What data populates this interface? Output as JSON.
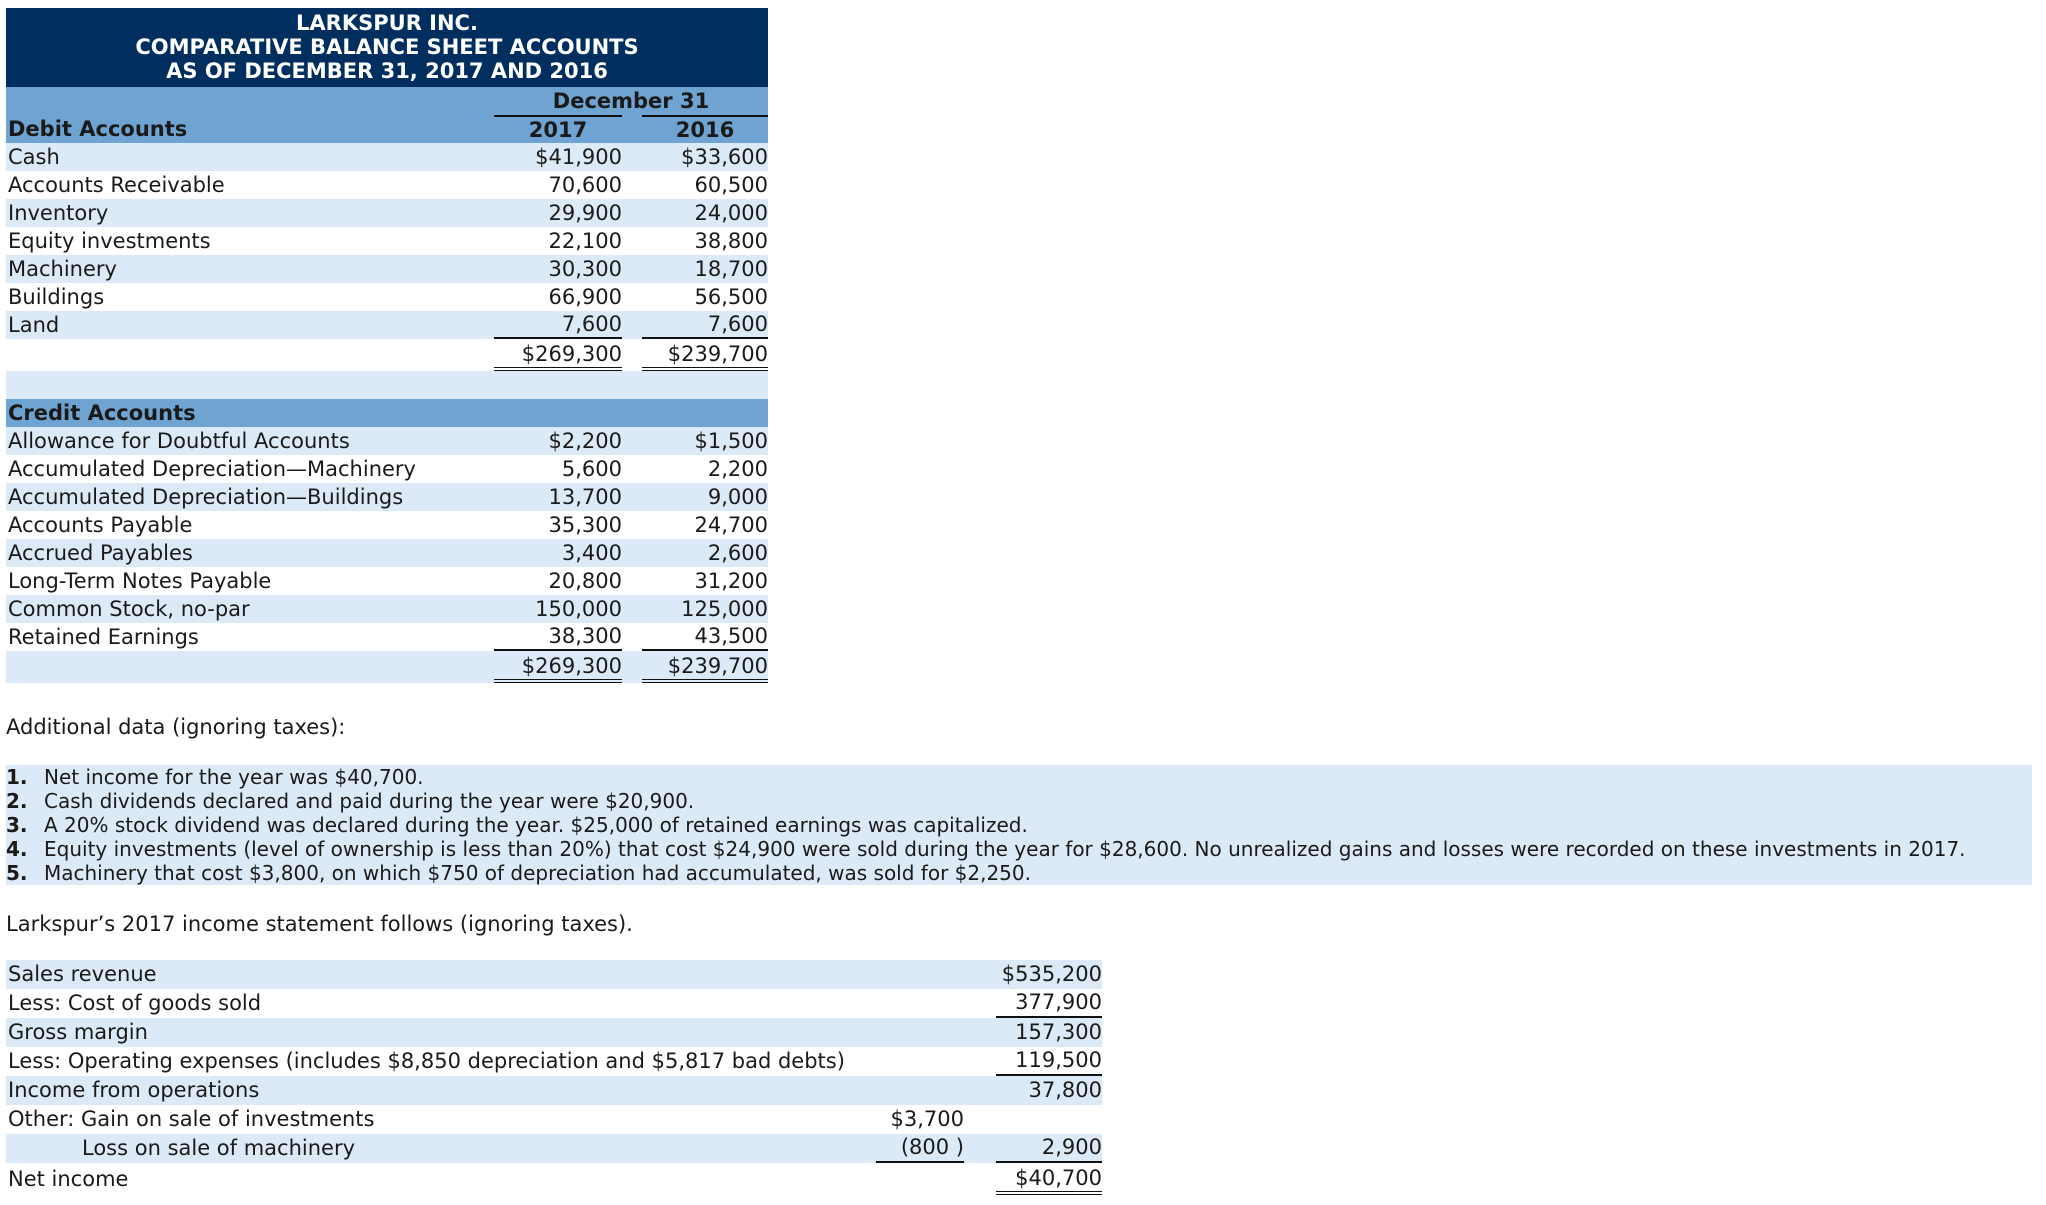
{
  "header": {
    "company": "LARKSPUR INC.",
    "statement": "COMPARATIVE BALANCE SHEET ACCOUNTS",
    "date_line": "AS OF DECEMBER 31, 2017 AND 2016"
  },
  "columns": {
    "group_label": "December 31",
    "year1": "2017",
    "year2": "2016"
  },
  "debit": {
    "heading": "Debit Accounts",
    "rows": [
      {
        "label": "Cash",
        "y2017": "$41,900",
        "y2016": "$33,600"
      },
      {
        "label": "Accounts Receivable",
        "y2017": "70,600",
        "y2016": "60,500"
      },
      {
        "label": "Inventory",
        "y2017": "29,900",
        "y2016": "24,000"
      },
      {
        "label": "Equity investments",
        "y2017": "22,100",
        "y2016": "38,800"
      },
      {
        "label": "Machinery",
        "y2017": "30,300",
        "y2016": "18,700"
      },
      {
        "label": "Buildings",
        "y2017": "66,900",
        "y2016": "56,500"
      },
      {
        "label": "Land",
        "y2017": "7,600",
        "y2016": "7,600"
      }
    ],
    "total": {
      "y2017": "$269,300",
      "y2016": "$239,700"
    }
  },
  "credit": {
    "heading": "Credit Accounts",
    "rows": [
      {
        "label": "Allowance for Doubtful Accounts",
        "y2017": "$2,200",
        "y2016": "$1,500"
      },
      {
        "label": "Accumulated Depreciation—Machinery",
        "y2017": "5,600",
        "y2016": "2,200"
      },
      {
        "label": "Accumulated Depreciation—Buildings",
        "y2017": "13,700",
        "y2016": "9,000"
      },
      {
        "label": "Accounts Payable",
        "y2017": "35,300",
        "y2016": "24,700"
      },
      {
        "label": "Accrued Payables",
        "y2017": "3,400",
        "y2016": "2,600"
      },
      {
        "label": "Long-Term Notes Payable",
        "y2017": "20,800",
        "y2016": "31,200"
      },
      {
        "label": "Common Stock, no-par",
        "y2017": "150,000",
        "y2016": "125,000"
      },
      {
        "label": "Retained Earnings",
        "y2017": "38,300",
        "y2016": "43,500"
      }
    ],
    "total": {
      "y2017": "$269,300",
      "y2016": "$239,700"
    }
  },
  "additional_heading": "Additional data (ignoring taxes):",
  "notes": [
    {
      "num": "1.",
      "text": "Net income for the year was $40,700."
    },
    {
      "num": "2.",
      "text": "Cash dividends declared and paid during the year were $20,900."
    },
    {
      "num": "3.",
      "text": "A 20% stock dividend was declared during the year. $25,000 of retained earnings was capitalized."
    },
    {
      "num": "4.",
      "text": "Equity investments (level of ownership is less than 20%) that cost $24,900 were sold during the year for $28,600. No unrealized gains and losses were recorded on these investments in 2017."
    },
    {
      "num": "5.",
      "text": "Machinery that cost $3,800, on which $750 of depreciation had accumulated, was sold for $2,250."
    }
  ],
  "income_intro": "Larkspur’s 2017 income statement follows (ignoring taxes).",
  "income": {
    "sales": {
      "label": "Sales revenue",
      "amount": "$535,200"
    },
    "cogs": {
      "label": "Less: Cost of goods sold",
      "amount": "377,900"
    },
    "gross": {
      "label": "Gross margin",
      "amount": "157,300"
    },
    "opex": {
      "label": "Less: Operating expenses (includes $8,850 depreciation and $5,817 bad debts)",
      "amount": "119,500"
    },
    "ops": {
      "label": "Income from operations",
      "amount": "37,800"
    },
    "gain": {
      "label": "Other: Gain on sale of investments",
      "amount": "$3,700"
    },
    "loss": {
      "label": "Loss on sale of machinery",
      "amount": "(800 )",
      "net_other": "2,900"
    },
    "net": {
      "label": "Net income",
      "amount": "$40,700"
    }
  }
}
